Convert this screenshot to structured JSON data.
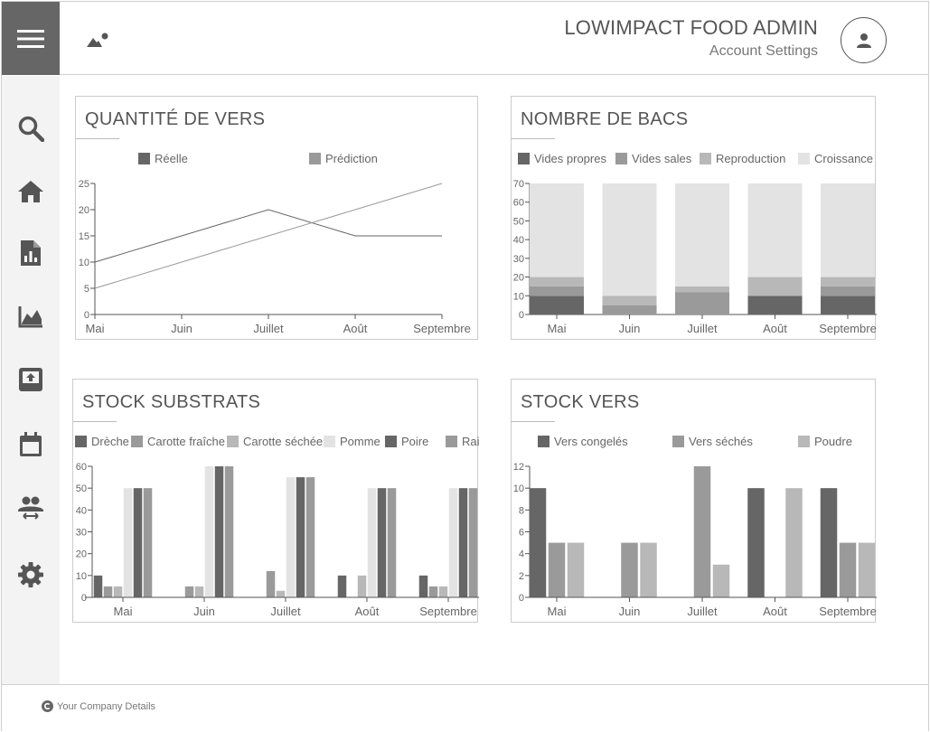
{
  "header": {
    "app_title": "LOWIMPACT FOOD ADMIN",
    "account_link": "Account Settings"
  },
  "sidebar": {
    "items": [
      {
        "name": "search-icon"
      },
      {
        "name": "home-icon"
      },
      {
        "name": "report-icon"
      },
      {
        "name": "chart-icon"
      },
      {
        "name": "upload-icon"
      },
      {
        "name": "calendar-icon"
      },
      {
        "name": "users-icon"
      },
      {
        "name": "gear-icon"
      }
    ]
  },
  "footer": {
    "company_text": "Your Company Details"
  },
  "colors": {
    "dark": "#666666",
    "mid": "#9a9a9a",
    "light": "#b8b8b8",
    "lightest": "#e3e3e3"
  },
  "chart_data": [
    {
      "id": "vers",
      "type": "line",
      "title": "QUANTITÉ DE VERS",
      "categories": [
        "Mai",
        "Juin",
        "Juillet",
        "Août",
        "Septembre"
      ],
      "ylim": [
        0,
        25
      ],
      "yticks": [
        0,
        5,
        10,
        15,
        20,
        25
      ],
      "series": [
        {
          "name": "Réelle",
          "color": "#666666",
          "values": [
            10,
            15,
            20,
            15,
            15
          ]
        },
        {
          "name": "Prédiction",
          "color": "#9a9a9a",
          "values": [
            5,
            10,
            15,
            20,
            25
          ]
        }
      ]
    },
    {
      "id": "bacs",
      "type": "bar",
      "stacked": true,
      "title": "NOMBRE DE BACS",
      "categories": [
        "Mai",
        "Juin",
        "Juillet",
        "Août",
        "Septembre"
      ],
      "ylim": [
        0,
        70
      ],
      "yticks": [
        0,
        10,
        20,
        30,
        40,
        50,
        60,
        70
      ],
      "series": [
        {
          "name": "Vides propres",
          "color": "#666666",
          "values": [
            10,
            0,
            0,
            10,
            10
          ]
        },
        {
          "name": "Vides sales",
          "color": "#9a9a9a",
          "values": [
            5,
            5,
            12,
            0,
            5
          ]
        },
        {
          "name": "Reproduction",
          "color": "#b8b8b8",
          "values": [
            5,
            5,
            3,
            10,
            5
          ]
        },
        {
          "name": "Croissance",
          "color": "#e3e3e3",
          "values": [
            50,
            60,
            55,
            50,
            50
          ]
        }
      ]
    },
    {
      "id": "substrats",
      "type": "bar",
      "title": "STOCK SUBSTRATS",
      "categories": [
        "Mai",
        "Juin",
        "Juillet",
        "Août",
        "Septembre"
      ],
      "ylim": [
        0,
        60
      ],
      "yticks": [
        0,
        10,
        20,
        30,
        40,
        50,
        60
      ],
      "series": [
        {
          "name": "Drèche",
          "color": "#666666",
          "values": [
            10,
            0,
            0,
            10,
            10
          ]
        },
        {
          "name": "Carotte fraîche",
          "color": "#9a9a9a",
          "values": [
            5,
            5,
            12,
            0,
            5
          ]
        },
        {
          "name": "Carotte séchée",
          "color": "#b8b8b8",
          "values": [
            5,
            5,
            3,
            10,
            5
          ]
        },
        {
          "name": "Pomme",
          "color": "#e3e3e3",
          "values": [
            50,
            60,
            55,
            50,
            50
          ]
        },
        {
          "name": "Poire",
          "color": "#666666",
          "values": [
            50,
            60,
            55,
            50,
            50
          ]
        },
        {
          "name": "Raisin",
          "color": "#9a9a9a",
          "values": [
            50,
            60,
            55,
            50,
            50
          ]
        }
      ]
    },
    {
      "id": "stockvers",
      "type": "bar",
      "title": "STOCK VERS",
      "categories": [
        "Mai",
        "Juin",
        "Juillet",
        "Août",
        "Septembre"
      ],
      "ylim": [
        0,
        12
      ],
      "yticks": [
        0,
        2,
        4,
        6,
        8,
        10,
        12
      ],
      "series": [
        {
          "name": "Vers congelés",
          "color": "#666666",
          "values": [
            10,
            0,
            0,
            10,
            10
          ]
        },
        {
          "name": "Vers séchés",
          "color": "#9a9a9a",
          "values": [
            5,
            5,
            12,
            0,
            5
          ]
        },
        {
          "name": "Poudre",
          "color": "#b8b8b8",
          "values": [
            5,
            5,
            3,
            10,
            5
          ]
        }
      ]
    }
  ]
}
